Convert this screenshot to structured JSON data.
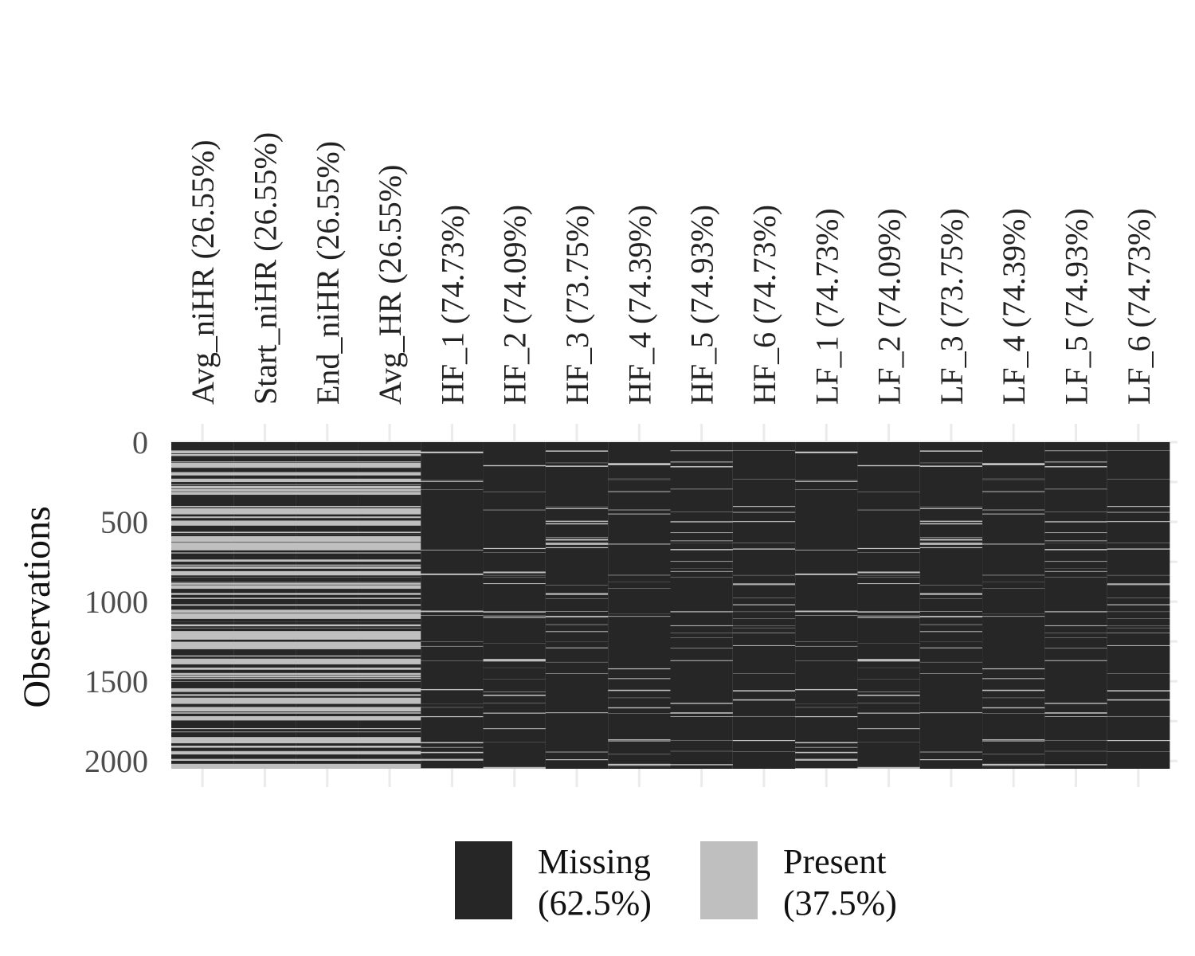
{
  "chart_data": {
    "type": "heatmap",
    "title": "",
    "xlabel": "",
    "ylabel": "Observations",
    "n_observations": 2049,
    "yticks": [
      0,
      500,
      1000,
      1500,
      2000
    ],
    "ylim": [
      0,
      2049
    ],
    "grid": true,
    "legend_position": "bottom",
    "columns": [
      {
        "name": "Avg_niHR",
        "missing_pct": 26.55,
        "label": "Avg_niHR (26.55%)"
      },
      {
        "name": "Start_niHR",
        "missing_pct": 26.55,
        "label": "Start_niHR (26.55%)"
      },
      {
        "name": "End_niHR",
        "missing_pct": 26.55,
        "label": "End_niHR (26.55%)"
      },
      {
        "name": "Avg_HR",
        "missing_pct": 26.55,
        "label": "Avg_HR (26.55%)"
      },
      {
        "name": "HF_1",
        "missing_pct": 74.73,
        "label": "HF_1 (74.73%)"
      },
      {
        "name": "HF_2",
        "missing_pct": 74.09,
        "label": "HF_2 (74.09%)"
      },
      {
        "name": "HF_3",
        "missing_pct": 73.75,
        "label": "HF_3 (73.75%)"
      },
      {
        "name": "HF_4",
        "missing_pct": 74.39,
        "label": "HF_4 (74.39%)"
      },
      {
        "name": "HF_5",
        "missing_pct": 74.93,
        "label": "HF_5 (74.93%)"
      },
      {
        "name": "HF_6",
        "missing_pct": 74.73,
        "label": "HF_6 (74.73%)"
      },
      {
        "name": "LF_1",
        "missing_pct": 74.73,
        "label": "LF_1 (74.73%)"
      },
      {
        "name": "LF_2",
        "missing_pct": 74.09,
        "label": "LF_2 (74.09%)"
      },
      {
        "name": "LF_3",
        "missing_pct": 73.75,
        "label": "LF_3 (73.75%)"
      },
      {
        "name": "LF_4",
        "missing_pct": 74.39,
        "label": "LF_4 (74.39%)"
      },
      {
        "name": "LF_5",
        "missing_pct": 74.93,
        "label": "LF_5 (74.93%)"
      },
      {
        "name": "LF_6",
        "missing_pct": 74.73,
        "label": "LF_6 (74.73%)"
      }
    ],
    "legend": [
      {
        "key": "missing",
        "label_line1": "Missing",
        "label_line2": "(62.5%)",
        "pct": 62.5,
        "color": "#262626"
      },
      {
        "key": "present",
        "label_line1": "Present",
        "label_line2": "(37.5%)",
        "pct": 37.5,
        "color": "#bfbfbf"
      }
    ],
    "colors": {
      "missing": "#262626",
      "present": "#bfbfbf",
      "grid": "#ebebeb"
    }
  }
}
